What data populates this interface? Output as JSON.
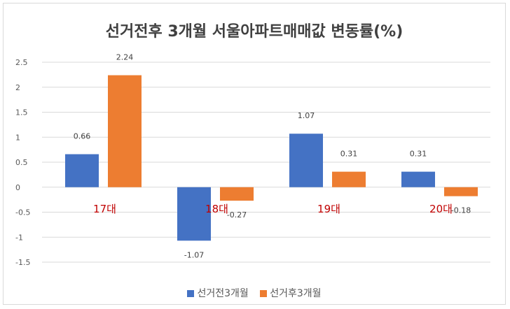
{
  "chart_data": {
    "type": "bar",
    "title": "선거전후 3개월 서울아파트매매값 변동률(%)",
    "categories": [
      "17대",
      "18대",
      "19대",
      "20대"
    ],
    "series": [
      {
        "name": "선거전3개월",
        "values": [
          0.66,
          -1.07,
          1.07,
          0.31
        ],
        "labels": [
          "0.66",
          "-1.07",
          "1.07",
          "0.31"
        ],
        "color": "#4472c4"
      },
      {
        "name": "선거후3개월",
        "values": [
          2.24,
          -0.27,
          0.31,
          -0.18
        ],
        "labels": [
          "2.24",
          "-0.27",
          "0.31",
          "-0.18"
        ],
        "color": "#ed7d31"
      }
    ],
    "yticks": [
      "2.5",
      "2",
      "1.5",
      "1",
      "0.5",
      "0",
      "-0.5",
      "-1",
      "-1.5"
    ],
    "ylim": [
      -1.5,
      2.5
    ],
    "grid": true,
    "legend": "bottom",
    "category_label_color": "#c00000"
  }
}
